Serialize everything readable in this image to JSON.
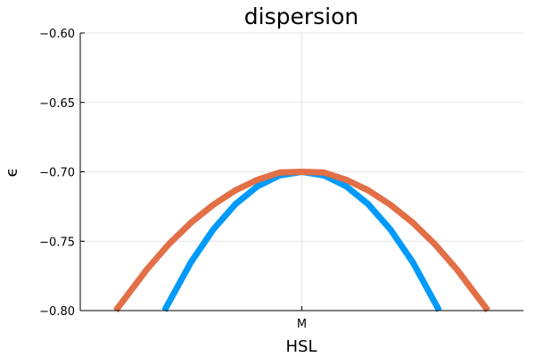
{
  "chart_data": {
    "type": "line",
    "title": "dispersion",
    "xlabel": "HSL",
    "ylabel": "ϵ",
    "xticks": [
      {
        "x": 0,
        "label": "M"
      }
    ],
    "ylim": [
      -0.8,
      -0.6
    ],
    "yticks": [
      -0.8,
      -0.75,
      -0.7,
      -0.65,
      -0.6
    ],
    "ytick_labels": [
      "−0.80",
      "−0.75",
      "−0.70",
      "−0.65",
      "−0.60"
    ],
    "xlim": [
      -1.0,
      1.0
    ],
    "grid": true,
    "legend": "none",
    "series": [
      {
        "color": "#009AFA",
        "x": [
          -0.62,
          -0.5,
          -0.4,
          -0.3,
          -0.2,
          -0.1,
          0.0,
          0.1,
          0.2,
          0.3,
          0.4,
          0.5,
          0.62
        ],
        "y": [
          -0.8,
          -0.765,
          -0.7416,
          -0.7234,
          -0.7104,
          -0.7026,
          -0.7,
          -0.7026,
          -0.7104,
          -0.7234,
          -0.7416,
          -0.765,
          -0.8
        ]
      },
      {
        "color": "#E26F46",
        "x": [
          -0.84,
          -0.7,
          -0.6,
          -0.5,
          -0.4,
          -0.3,
          -0.2,
          -0.1,
          0.0,
          0.1,
          0.2,
          0.3,
          0.4,
          0.5,
          0.6,
          0.7,
          0.84
        ],
        "y": [
          -0.8,
          -0.7704,
          -0.7521,
          -0.7366,
          -0.7238,
          -0.7134,
          -0.7057,
          -0.7005,
          -0.7,
          -0.7005,
          -0.7057,
          -0.7134,
          -0.7238,
          -0.7366,
          -0.7521,
          -0.7704,
          -0.8
        ]
      }
    ]
  }
}
